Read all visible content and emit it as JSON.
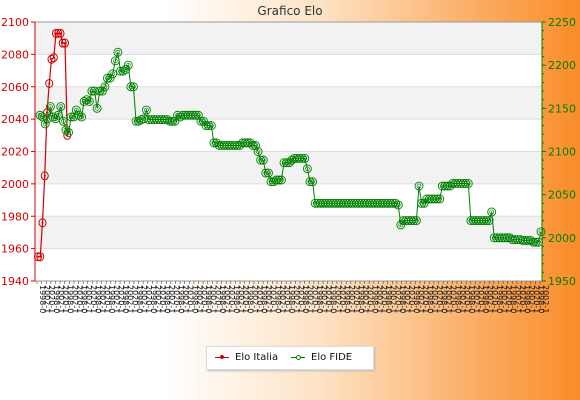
{
  "chart_data": {
    "type": "line",
    "title": "Grafico Elo",
    "x_tick_label_samples": [
      "1998-0",
      "2002-1",
      "2020-1"
    ],
    "y_left": {
      "min": 1940,
      "max": 2100,
      "step": 20,
      "color": "#d40000"
    },
    "y_right": {
      "min": 1950,
      "max": 2250,
      "step": 50,
      "color": "#008000"
    },
    "grid": true,
    "legend_position": "bottom",
    "series": [
      {
        "name": "Elo Italia",
        "axis": "left",
        "color": "#d40000",
        "values": [
          1955,
          1955,
          1976,
          2005,
          2044,
          2062,
          2077,
          2078,
          2093,
          2093,
          2093,
          2087,
          2087,
          2030
        ]
      },
      {
        "name": "Elo FIDE",
        "axis": "right",
        "color": "#008000",
        "values": [
          2142,
          2140,
          2132,
          2138,
          2152,
          2140,
          2138,
          2142,
          2152,
          2135,
          2125,
          2122,
          2140,
          2140,
          2148,
          2142,
          2140,
          2158,
          2160,
          2158,
          2170,
          2170,
          2150,
          2170,
          2170,
          2175,
          2185,
          2185,
          2190,
          2205,
          2215,
          2193,
          2193,
          2195,
          2200,
          2175,
          2175,
          2135,
          2135,
          2137,
          2138,
          2148,
          2137,
          2137,
          2137,
          2137,
          2137,
          2137,
          2137,
          2137,
          2135,
          2135,
          2135,
          2142,
          2140,
          2142,
          2142,
          2142,
          2142,
          2142,
          2142,
          2142,
          2135,
          2135,
          2130,
          2130,
          2130,
          2110,
          2110,
          2107,
          2107,
          2107,
          2107,
          2107,
          2107,
          2107,
          2107,
          2107,
          2110,
          2110,
          2110,
          2110,
          2107,
          2107,
          2100,
          2090,
          2090,
          2075,
          2075,
          2065,
          2065,
          2067,
          2067,
          2067,
          2087,
          2087,
          2087,
          2090,
          2092,
          2092,
          2092,
          2092,
          2092,
          2080,
          2065,
          2065,
          2040,
          2040,
          2040,
          2040,
          2040,
          2040,
          2040,
          2040,
          2040,
          2040,
          2040,
          2040,
          2040,
          2040,
          2040,
          2040,
          2040,
          2040,
          2040,
          2040,
          2040,
          2040,
          2040,
          2040,
          2040,
          2040,
          2040,
          2040,
          2040,
          2040,
          2040,
          2040,
          2038,
          2015,
          2020,
          2020,
          2020,
          2020,
          2020,
          2020,
          2060,
          2040,
          2040,
          2045,
          2045,
          2045,
          2045,
          2045,
          2045,
          2060,
          2060,
          2060,
          2060,
          2063,
          2063,
          2063,
          2063,
          2063,
          2063,
          2063,
          2020,
          2020,
          2020,
          2020,
          2020,
          2020,
          2020,
          2020,
          2030,
          2000,
          2000,
          2000,
          2000,
          2000,
          2000,
          2000,
          1998,
          1998,
          1998,
          1998,
          1997,
          1997,
          1997,
          1997,
          1995,
          1995,
          1995,
          2007
        ]
      }
    ]
  }
}
